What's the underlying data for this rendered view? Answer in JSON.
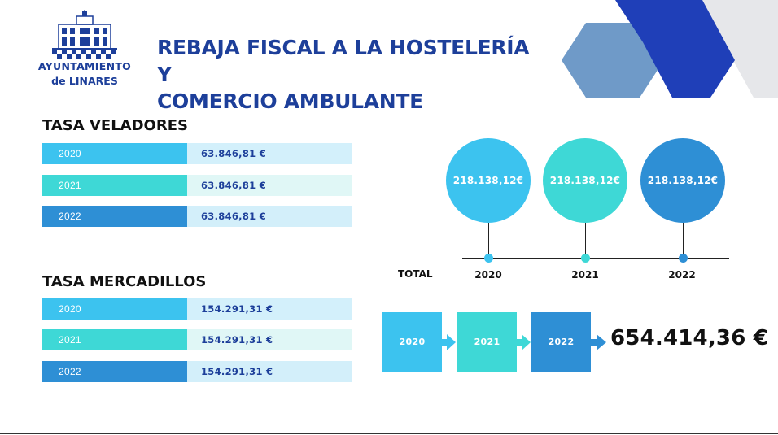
{
  "logo": {
    "line1": "AYUNTAMIENTO",
    "line2": "de LINARES"
  },
  "title": {
    "line1": "REBAJA FISCAL A LA HOSTELERÍA Y",
    "line2": "COMERCIO AMBULANTE"
  },
  "veladores": {
    "heading": "TASA VELADORES",
    "rows": [
      {
        "year": "2020",
        "value": "63.846,81 €"
      },
      {
        "year": "2021",
        "value": "63.846,81 €"
      },
      {
        "year": "2022",
        "value": "63.846,81 €"
      }
    ]
  },
  "mercadillos": {
    "heading": "TASA MERCADILLOS",
    "rows": [
      {
        "year": "2020",
        "value": "154.291,31 €"
      },
      {
        "year": "2021",
        "value": "154.291,31 €"
      },
      {
        "year": "2022",
        "value": "154.291,31 €"
      }
    ]
  },
  "timeline": {
    "total_label": "TOTAL",
    "items": [
      {
        "year": "2020",
        "amount": "218.138,12€"
      },
      {
        "year": "2021",
        "amount": "218.138,12€"
      },
      {
        "year": "2022",
        "amount": "218.138,12€"
      }
    ]
  },
  "flow": {
    "boxes": [
      "2020",
      "2021",
      "2022"
    ],
    "total": "654.414,36 €"
  },
  "colors": {
    "y2020": "#3cc3ef",
    "y2021": "#3ed8d6",
    "y2022": "#2e8fd5",
    "title": "#1d3f9a",
    "deco_dark": "#1f3fb8",
    "deco_light": "#6f9ac8",
    "deco_grey": "#e6e7ea"
  }
}
